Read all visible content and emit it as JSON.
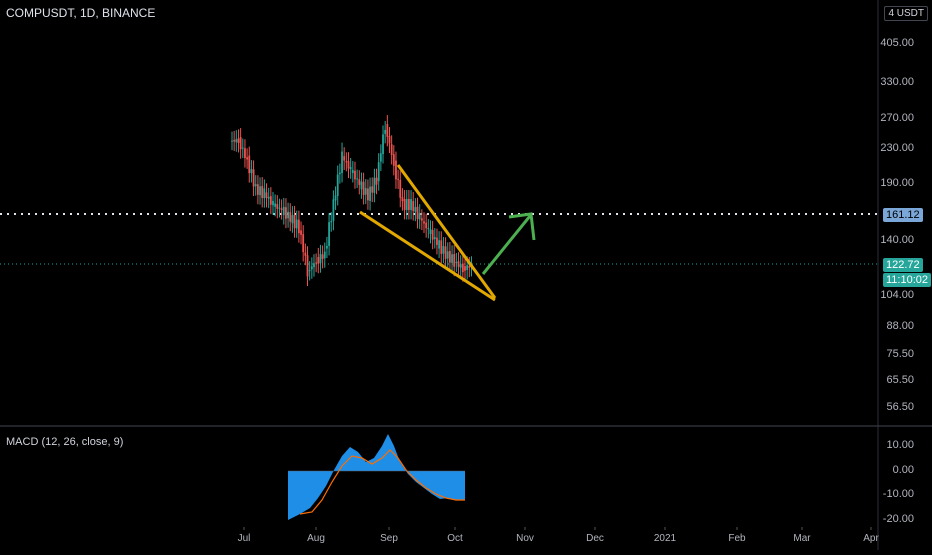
{
  "header": {
    "title": "COMPUSDT, 1D, BINANCE",
    "currency_button": "4 USDT"
  },
  "macd": {
    "title": "MACD (12, 26, close, 9)"
  },
  "price_labels": {
    "resistance": "161.12",
    "last_price": "122.72",
    "countdown": "11:10:02"
  },
  "colors": {
    "up": "#26a69a",
    "down": "#ef5350",
    "wedge": "#e0a800",
    "arrow": "#4caf50",
    "macd_hist": "#2196f3",
    "signal": "#ff6d00",
    "resistance_tag": "#7aa7d8",
    "last_tag": "#26a69a"
  },
  "chart_data": [
    {
      "type": "line",
      "title": "COMPUSDT, 1D, BINANCE",
      "y_scale": "log",
      "y_ticks": [
        "405.00",
        "330.00",
        "270.00",
        "230.00",
        "190.00",
        "140.00",
        "104.00",
        "88.00",
        "75.50",
        "65.50",
        "56.50"
      ],
      "x_ticks": [
        "Jul",
        "Aug",
        "Sep",
        "Oct",
        "Nov",
        "Dec",
        "2021",
        "Feb",
        "Mar",
        "Apr"
      ],
      "series": [
        {
          "x": [
            "Jun 20",
            "Jun 24",
            "Jun 28",
            "Jul 2",
            "Jul 6",
            "Jul 10",
            "Jul 14",
            "Jul 18",
            "Jul 22",
            "Jul 26",
            "Jul 30",
            "Aug 3",
            "Aug 7",
            "Aug 11",
            "Aug 15",
            "Aug 19",
            "Aug 23",
            "Aug 27",
            "Aug 31",
            "Sep 4",
            "Sep 8",
            "Sep 12",
            "Sep 16",
            "Sep 20",
            "Sep 24",
            "Sep 28",
            "Oct 2",
            "Oct 4"
          ],
          "values": [
            240,
            215,
            185,
            180,
            170,
            165,
            158,
            150,
            118,
            125,
            130,
            170,
            220,
            205,
            190,
            178,
            195,
            260,
            210,
            170,
            170,
            158,
            148,
            138,
            130,
            125,
            120,
            122
          ]
        }
      ],
      "horizontal_lines": [
        161.12,
        122.72
      ]
    },
    {
      "type": "area",
      "title": "MACD (12, 26, close, 9)",
      "y_ticks": [
        "10.00",
        "0.00",
        "-10.00",
        "-20.00"
      ]
    }
  ]
}
